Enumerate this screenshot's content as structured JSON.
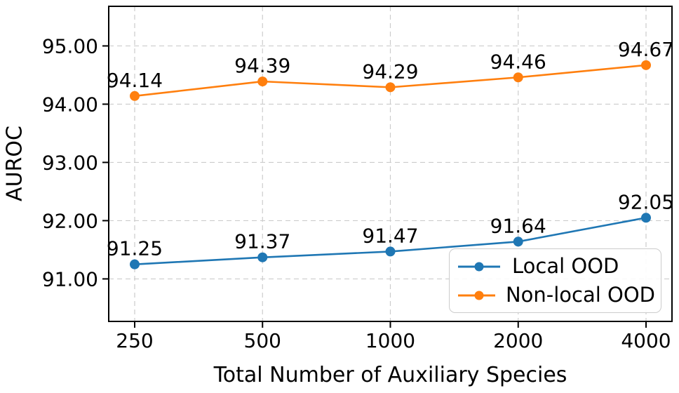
{
  "chart_data": {
    "type": "line",
    "title": "",
    "xlabel": "Total Number of Auxiliary Species",
    "ylabel": "AUROC",
    "x_tick_labels": [
      "250",
      "500",
      "1000",
      "2000",
      "4000"
    ],
    "y_ticks": [
      91,
      92,
      93,
      94,
      95
    ],
    "y_tick_labels": [
      "91.00",
      "92.00",
      "93.00",
      "94.00",
      "95.00"
    ],
    "ylim": [
      90.27,
      95.68
    ],
    "grid": "dashed",
    "grid_color": "#cccccc",
    "legend_position": "lower right",
    "series": [
      {
        "name": "Local OOD",
        "color": "#1f77b4",
        "marker": "circle",
        "values": [
          91.25,
          91.37,
          91.47,
          91.64,
          92.05
        ],
        "point_labels": [
          "91.25",
          "91.37",
          "91.47",
          "91.64",
          "92.05"
        ]
      },
      {
        "name": "Non-local OOD",
        "color": "#ff7f0e",
        "marker": "circle",
        "values": [
          94.14,
          94.39,
          94.29,
          94.46,
          94.67
        ],
        "point_labels": [
          "94.14",
          "94.39",
          "94.29",
          "94.46",
          "94.67"
        ]
      }
    ]
  }
}
